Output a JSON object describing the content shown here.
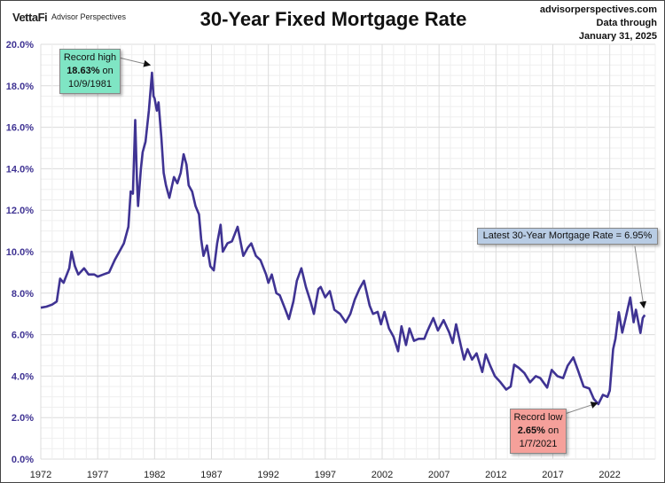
{
  "header": {
    "logo": "VettaFi",
    "logo_sub": "Advisor Perspectives",
    "site": "advisorperspectives.com",
    "data_through_label": "Data through",
    "data_through_date": "January 31, 2025"
  },
  "callouts": {
    "high": {
      "line1": "Record high",
      "value": "18.63%",
      "on": " on",
      "date": "10/9/1981"
    },
    "low": {
      "line1": "Record low",
      "value": "2.65%",
      "on": " on",
      "date": "1/7/2021"
    },
    "latest": "Latest 30-Year Mortgage Rate = 6.95%"
  },
  "colors": {
    "line": "#3f3393",
    "axis_label": "#3f3393",
    "high_box": "#7fe5c4",
    "low_box": "#f5a09a",
    "latest_box": "#b8cce4"
  },
  "chart_data": {
    "type": "line",
    "title": "30-Year Fixed Mortgage Rate",
    "xlabel": "",
    "ylabel": "",
    "xlim": [
      1972,
      2026
    ],
    "ylim": [
      0,
      20
    ],
    "grid": true,
    "x_ticks": [
      "1972",
      "1977",
      "1982",
      "1987",
      "1992",
      "1997",
      "2002",
      "2007",
      "2012",
      "2017",
      "2022"
    ],
    "y_ticks": [
      "0.0%",
      "2.0%",
      "4.0%",
      "6.0%",
      "8.0%",
      "10.0%",
      "12.0%",
      "14.0%",
      "16.0%",
      "18.0%",
      "20.0%"
    ],
    "series": [
      {
        "name": "30-Year Fixed Mortgage Rate",
        "points": [
          [
            1972,
            7.3
          ],
          [
            1972.5,
            7.35
          ],
          [
            1973,
            7.45
          ],
          [
            1973.4,
            7.6
          ],
          [
            1973.7,
            8.7
          ],
          [
            1974,
            8.5
          ],
          [
            1974.5,
            9.2
          ],
          [
            1974.7,
            10.0
          ],
          [
            1975,
            9.3
          ],
          [
            1975.3,
            8.9
          ],
          [
            1975.8,
            9.2
          ],
          [
            1976.2,
            8.9
          ],
          [
            1976.7,
            8.9
          ],
          [
            1977,
            8.8
          ],
          [
            1977.5,
            8.9
          ],
          [
            1978,
            9.0
          ],
          [
            1978.5,
            9.6
          ],
          [
            1978.9,
            10.0
          ],
          [
            1979.3,
            10.4
          ],
          [
            1979.7,
            11.2
          ],
          [
            1979.9,
            12.9
          ],
          [
            1980.1,
            12.8
          ],
          [
            1980.3,
            16.35
          ],
          [
            1980.45,
            13.5
          ],
          [
            1980.55,
            12.2
          ],
          [
            1980.8,
            14.0
          ],
          [
            1980.95,
            14.8
          ],
          [
            1981.2,
            15.3
          ],
          [
            1981.5,
            16.8
          ],
          [
            1981.77,
            18.63
          ],
          [
            1981.9,
            17.5
          ],
          [
            1982.0,
            17.4
          ],
          [
            1982.2,
            16.8
          ],
          [
            1982.35,
            17.2
          ],
          [
            1982.6,
            15.5
          ],
          [
            1982.8,
            13.8
          ],
          [
            1983.0,
            13.2
          ],
          [
            1983.3,
            12.6
          ],
          [
            1983.7,
            13.6
          ],
          [
            1984.0,
            13.3
          ],
          [
            1984.3,
            13.8
          ],
          [
            1984.55,
            14.7
          ],
          [
            1984.8,
            14.2
          ],
          [
            1985.0,
            13.2
          ],
          [
            1985.3,
            12.9
          ],
          [
            1985.6,
            12.2
          ],
          [
            1985.9,
            11.8
          ],
          [
            1986.1,
            10.6
          ],
          [
            1986.3,
            9.8
          ],
          [
            1986.6,
            10.3
          ],
          [
            1986.9,
            9.3
          ],
          [
            1987.2,
            9.1
          ],
          [
            1987.5,
            10.4
          ],
          [
            1987.8,
            11.3
          ],
          [
            1988.0,
            10.0
          ],
          [
            1988.4,
            10.4
          ],
          [
            1988.8,
            10.5
          ],
          [
            1989.3,
            11.2
          ],
          [
            1989.8,
            9.8
          ],
          [
            1990.2,
            10.2
          ],
          [
            1990.5,
            10.4
          ],
          [
            1990.9,
            9.8
          ],
          [
            1991.3,
            9.6
          ],
          [
            1991.8,
            8.9
          ],
          [
            1992.0,
            8.5
          ],
          [
            1992.3,
            8.9
          ],
          [
            1992.7,
            8.0
          ],
          [
            1993.0,
            7.9
          ],
          [
            1993.5,
            7.2
          ],
          [
            1993.8,
            6.75
          ],
          [
            1994.2,
            7.6
          ],
          [
            1994.5,
            8.6
          ],
          [
            1994.9,
            9.2
          ],
          [
            1995.3,
            8.3
          ],
          [
            1995.7,
            7.6
          ],
          [
            1996.0,
            7.0
          ],
          [
            1996.4,
            8.2
          ],
          [
            1996.6,
            8.3
          ],
          [
            1997.0,
            7.8
          ],
          [
            1997.4,
            8.1
          ],
          [
            1997.8,
            7.2
          ],
          [
            1998.3,
            7.0
          ],
          [
            1998.8,
            6.6
          ],
          [
            1999.2,
            7.0
          ],
          [
            1999.6,
            7.7
          ],
          [
            2000.0,
            8.2
          ],
          [
            2000.4,
            8.6
          ],
          [
            2000.9,
            7.4
          ],
          [
            2001.2,
            7.0
          ],
          [
            2001.6,
            7.1
          ],
          [
            2001.9,
            6.5
          ],
          [
            2002.2,
            7.1
          ],
          [
            2002.6,
            6.3
          ],
          [
            2003.0,
            5.9
          ],
          [
            2003.4,
            5.2
          ],
          [
            2003.7,
            6.4
          ],
          [
            2004.1,
            5.5
          ],
          [
            2004.4,
            6.3
          ],
          [
            2004.8,
            5.7
          ],
          [
            2005.2,
            5.8
          ],
          [
            2005.7,
            5.8
          ],
          [
            2006.0,
            6.2
          ],
          [
            2006.5,
            6.8
          ],
          [
            2006.9,
            6.2
          ],
          [
            2007.4,
            6.7
          ],
          [
            2007.9,
            6.1
          ],
          [
            2008.2,
            5.6
          ],
          [
            2008.5,
            6.5
          ],
          [
            2008.9,
            5.5
          ],
          [
            2009.2,
            4.8
          ],
          [
            2009.5,
            5.3
          ],
          [
            2009.9,
            4.8
          ],
          [
            2010.3,
            5.1
          ],
          [
            2010.8,
            4.2
          ],
          [
            2011.1,
            5.05
          ],
          [
            2011.5,
            4.5
          ],
          [
            2011.9,
            4.0
          ],
          [
            2012.4,
            3.7
          ],
          [
            2012.9,
            3.35
          ],
          [
            2013.3,
            3.5
          ],
          [
            2013.6,
            4.55
          ],
          [
            2014.0,
            4.4
          ],
          [
            2014.5,
            4.15
          ],
          [
            2015.0,
            3.7
          ],
          [
            2015.5,
            4.0
          ],
          [
            2015.9,
            3.9
          ],
          [
            2016.5,
            3.45
          ],
          [
            2016.9,
            4.3
          ],
          [
            2017.4,
            4.0
          ],
          [
            2017.9,
            3.9
          ],
          [
            2018.3,
            4.5
          ],
          [
            2018.8,
            4.9
          ],
          [
            2019.2,
            4.3
          ],
          [
            2019.7,
            3.5
          ],
          [
            2020.2,
            3.4
          ],
          [
            2020.6,
            2.9
          ],
          [
            2021.0,
            2.65
          ],
          [
            2021.4,
            3.1
          ],
          [
            2021.8,
            3.0
          ],
          [
            2022.0,
            3.3
          ],
          [
            2022.3,
            5.3
          ],
          [
            2022.5,
            5.8
          ],
          [
            2022.8,
            7.08
          ],
          [
            2023.1,
            6.1
          ],
          [
            2023.4,
            6.8
          ],
          [
            2023.8,
            7.79
          ],
          [
            2024.1,
            6.6
          ],
          [
            2024.3,
            7.2
          ],
          [
            2024.7,
            6.08
          ],
          [
            2024.9,
            6.8
          ],
          [
            2025.08,
            6.95
          ]
        ]
      }
    ]
  }
}
